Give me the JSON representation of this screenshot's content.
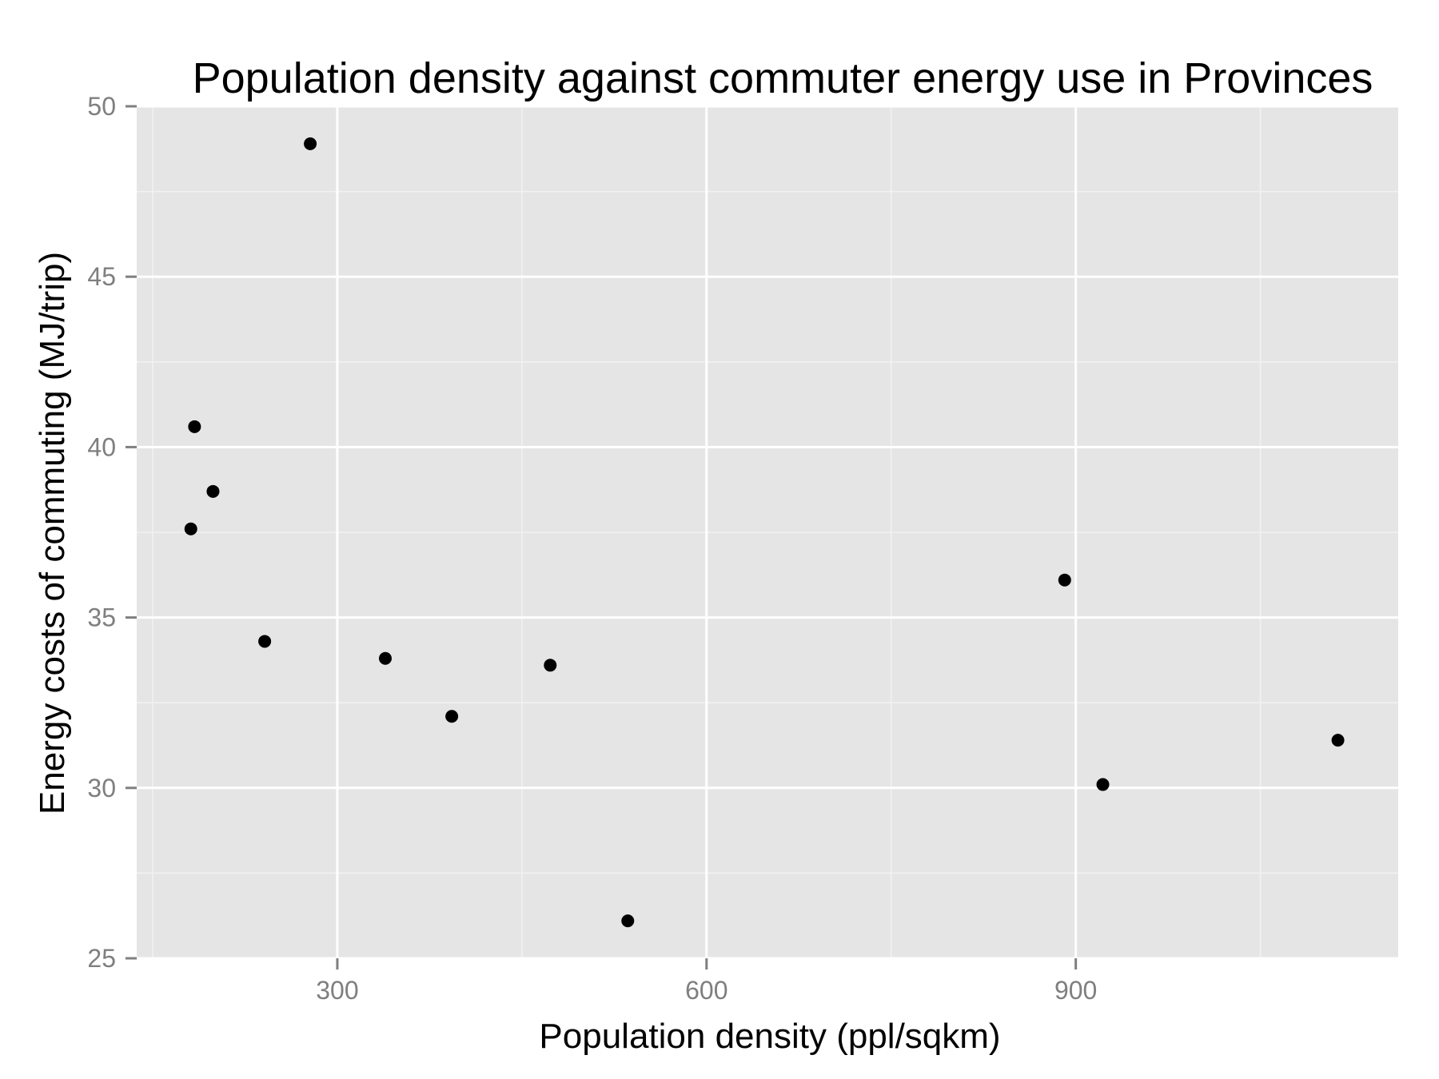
{
  "chart_data": {
    "type": "scatter",
    "title": "Population density against commuter energy use in Provinces",
    "xlabel": "Population density (ppl/sqkm)",
    "ylabel": "Energy costs of commuting (MJ/trip)",
    "xlim": [
      137,
      1162
    ],
    "ylim": [
      25,
      50
    ],
    "x_ticks": [
      300,
      600,
      900
    ],
    "x_tick_labels": [
      "300",
      "600",
      "900"
    ],
    "y_ticks": [
      25,
      30,
      35,
      40,
      45,
      50
    ],
    "y_tick_labels": [
      "25",
      "30",
      "35",
      "40",
      "45",
      "50"
    ],
    "grid": true,
    "legend": "none",
    "points": [
      {
        "x": 278,
        "y": 48.9
      },
      {
        "x": 184,
        "y": 40.6
      },
      {
        "x": 199,
        "y": 38.7
      },
      {
        "x": 181,
        "y": 37.6
      },
      {
        "x": 241,
        "y": 34.3
      },
      {
        "x": 339,
        "y": 33.8
      },
      {
        "x": 473,
        "y": 33.6
      },
      {
        "x": 393,
        "y": 32.1
      },
      {
        "x": 536,
        "y": 26.1
      },
      {
        "x": 891,
        "y": 36.1
      },
      {
        "x": 922,
        "y": 30.1
      },
      {
        "x": 1113,
        "y": 31.4
      }
    ],
    "colors": {
      "panel_background": "#e5e5e5",
      "grid_major": "#ffffff",
      "grid_minor": "#f2f2f2",
      "point": "#000000",
      "tick_label": "#7f7f7f",
      "tick_mark": "#7f7f7f"
    }
  }
}
